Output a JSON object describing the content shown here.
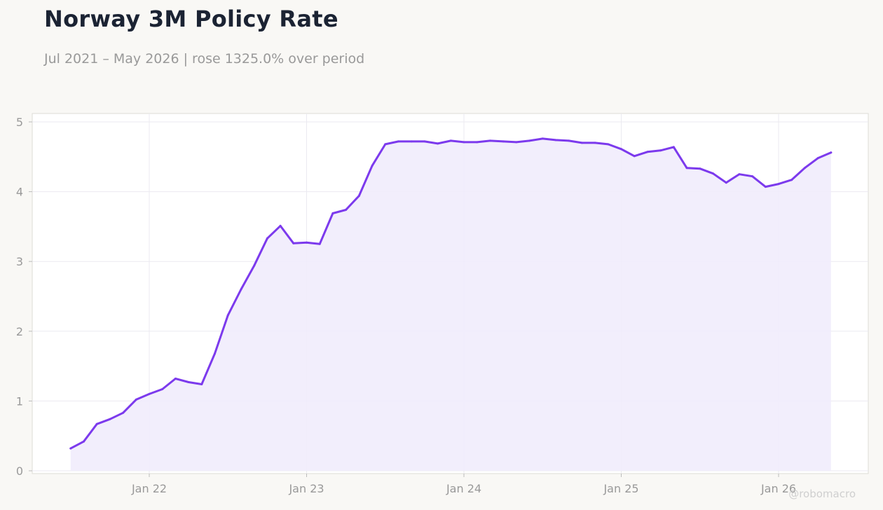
{
  "header": {
    "title": "Norway 3M Policy Rate",
    "subtitle": "Jul 2021 – May 2026 | rose 1325.0% over period"
  },
  "watermark": "@robomacro",
  "colors": {
    "line": "#7c3aed",
    "fill": "#f1ecfc",
    "background": "#f9f8f5",
    "plot_background": "#ffffff",
    "grid": "#ebeaf0",
    "axis_text": "#999999",
    "title": "#1b2333"
  },
  "chart_data": {
    "type": "area",
    "title": "Norway 3M Policy Rate",
    "subtitle": "Jul 2021 – May 2026 | rose 1325.0% over period",
    "xlabel": "",
    "ylabel": "",
    "ylim": [
      0,
      5
    ],
    "y_ticks": [
      0,
      1,
      2,
      3,
      4,
      5
    ],
    "x_ticks": [
      {
        "date": "2022-01-01",
        "label": "Jan 22"
      },
      {
        "date": "2023-01-01",
        "label": "Jan 23"
      },
      {
        "date": "2024-01-01",
        "label": "Jan 24"
      },
      {
        "date": "2025-01-01",
        "label": "Jan 25"
      },
      {
        "date": "2026-01-01",
        "label": "Jan 26"
      }
    ],
    "grid": true,
    "legend": "none",
    "series": [
      {
        "x": [
          "2021-07",
          "2021-08",
          "2021-09",
          "2021-10",
          "2021-11",
          "2021-12",
          "2022-01",
          "2022-02",
          "2022-03",
          "2022-04",
          "2022-05",
          "2022-06",
          "2022-07",
          "2022-08",
          "2022-09",
          "2022-10",
          "2022-11",
          "2022-12",
          "2023-01",
          "2023-02",
          "2023-03",
          "2023-04",
          "2023-05",
          "2023-06",
          "2023-07",
          "2023-08",
          "2023-09",
          "2023-10",
          "2023-11",
          "2023-12",
          "2024-01",
          "2024-02",
          "2024-03",
          "2024-04",
          "2024-05",
          "2024-06",
          "2024-07",
          "2024-08",
          "2024-09",
          "2024-10",
          "2024-11",
          "2024-12",
          "2025-01",
          "2025-02",
          "2025-03",
          "2025-04",
          "2025-05",
          "2025-06",
          "2025-07",
          "2025-08",
          "2025-09",
          "2025-10",
          "2025-11",
          "2025-12",
          "2026-01",
          "2026-02",
          "2026-03",
          "2026-04",
          "2026-05"
        ],
        "values": [
          0.32,
          0.42,
          0.67,
          0.74,
          0.83,
          1.02,
          1.1,
          1.17,
          1.32,
          1.27,
          1.24,
          1.68,
          2.23,
          2.6,
          2.94,
          3.33,
          3.51,
          3.26,
          3.27,
          3.25,
          3.69,
          3.74,
          3.94,
          4.37,
          4.68,
          4.72,
          4.72,
          4.72,
          4.69,
          4.73,
          4.71,
          4.71,
          4.73,
          4.72,
          4.71,
          4.73,
          4.76,
          4.74,
          4.73,
          4.7,
          4.7,
          4.68,
          4.61,
          4.51,
          4.57,
          4.59,
          4.64,
          4.34,
          4.33,
          4.26,
          4.13,
          4.25,
          4.22,
          4.07,
          4.11,
          4.17,
          4.34,
          4.48,
          4.56
        ]
      }
    ]
  }
}
